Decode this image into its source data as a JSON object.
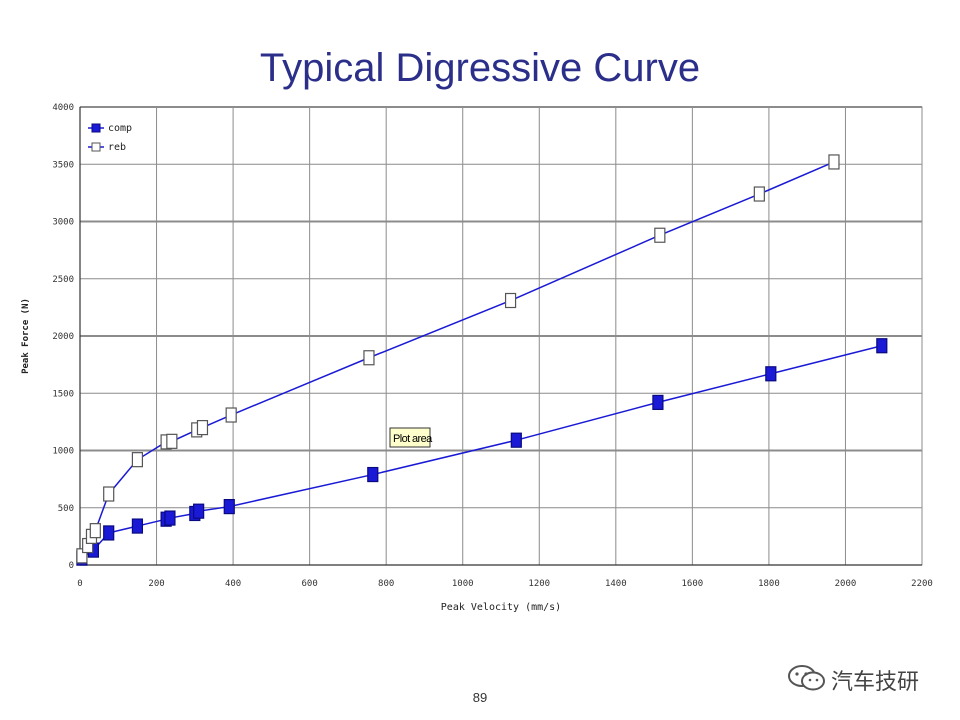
{
  "page": {
    "title": "Typical Digressive Curve",
    "page_number": "89",
    "watermark_text": "汽车技研",
    "tooltip": "Plot area"
  },
  "colors": {
    "title": "#2b2f8a",
    "series": "#1a1ad6",
    "grid": "#8c8c8c",
    "tooltip_bg": "#ffffcc"
  },
  "chart_data": {
    "type": "line",
    "xlabel": "Peak Velocity (mm/s)",
    "ylabel": "Peak Force (N)",
    "xlim": [
      0,
      2200
    ],
    "ylim": [
      0,
      4000
    ],
    "xticks": [
      0,
      200,
      400,
      600,
      800,
      1000,
      1200,
      1400,
      1600,
      1800,
      2000,
      2200
    ],
    "yticks": [
      0,
      500,
      1000,
      1500,
      2000,
      2500,
      3000,
      3500,
      4000
    ],
    "grid": true,
    "legend_position": "top-left",
    "series": [
      {
        "name": "comp",
        "marker": "filled-square",
        "color": "#1a1ad6",
        "points": [
          [
            5,
            60
          ],
          [
            35,
            130
          ],
          [
            75,
            280
          ],
          [
            150,
            340
          ],
          [
            225,
            400
          ],
          [
            235,
            410
          ],
          [
            300,
            450
          ],
          [
            310,
            470
          ],
          [
            390,
            510
          ],
          [
            765,
            790
          ],
          [
            1140,
            1090
          ],
          [
            1510,
            1420
          ],
          [
            1805,
            1670
          ],
          [
            2095,
            1915
          ]
        ]
      },
      {
        "name": "reb",
        "marker": "open-square",
        "color": "#1a1ad6",
        "points": [
          [
            5,
            80
          ],
          [
            20,
            170
          ],
          [
            30,
            250
          ],
          [
            40,
            300
          ],
          [
            75,
            620
          ],
          [
            150,
            920
          ],
          [
            225,
            1075
          ],
          [
            240,
            1080
          ],
          [
            305,
            1180
          ],
          [
            320,
            1200
          ],
          [
            395,
            1310
          ],
          [
            755,
            1810
          ],
          [
            1125,
            2310
          ],
          [
            1515,
            2880
          ],
          [
            1775,
            3240
          ],
          [
            1970,
            3520
          ]
        ]
      }
    ]
  }
}
